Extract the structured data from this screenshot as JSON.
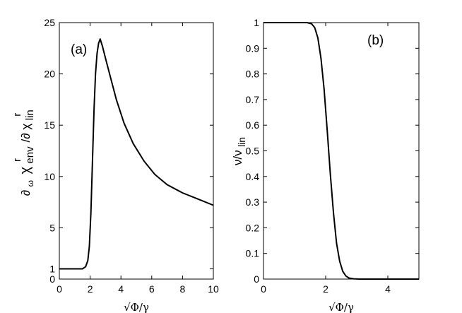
{
  "chart_data": [
    {
      "type": "line",
      "panel_label": "(a)",
      "xlabel": "√Φ/γ",
      "ylabel_parts": [
        "∂",
        "ω",
        "χ",
        "env",
        "r",
        "/∂ χ",
        "lin",
        "r"
      ],
      "xlim": [
        0,
        10
      ],
      "ylim": [
        0,
        25
      ],
      "xticks": [
        0,
        2,
        4,
        6,
        8,
        10
      ],
      "yticks": [
        0,
        1,
        5,
        10,
        15,
        20,
        25
      ],
      "grid": false,
      "series": [
        {
          "x": [
            0,
            1.5,
            1.7,
            1.85,
            1.95,
            2.05,
            2.15,
            2.25,
            2.35,
            2.45,
            2.55,
            2.65,
            2.8,
            3.0,
            3.3,
            3.7,
            4.2,
            4.8,
            5.5,
            6.2,
            7.0,
            8.0,
            9.0,
            10.0
          ],
          "y": [
            1.0,
            1.0,
            1.2,
            1.8,
            3.2,
            6.5,
            11.5,
            16.5,
            20.0,
            22.0,
            23.0,
            23.4,
            22.7,
            21.5,
            19.8,
            17.5,
            15.2,
            13.2,
            11.5,
            10.2,
            9.2,
            8.4,
            7.8,
            7.2
          ]
        }
      ]
    },
    {
      "type": "line",
      "panel_label": "(b)",
      "xlabel": "√Φ/γ",
      "ylabel_parts": [
        "ν/ν",
        "lin"
      ],
      "xlim": [
        0,
        5
      ],
      "ylim": [
        0,
        1
      ],
      "xticks": [
        0,
        2,
        4
      ],
      "yticks": [
        0,
        0.1,
        0.2,
        0.3,
        0.4,
        0.5,
        0.6,
        0.7,
        0.8,
        0.9,
        1
      ],
      "grid": false,
      "series": [
        {
          "x": [
            0,
            1.4,
            1.55,
            1.65,
            1.75,
            1.85,
            1.95,
            2.05,
            2.15,
            2.25,
            2.35,
            2.45,
            2.55,
            2.65,
            2.75,
            2.9,
            3.1,
            5.0
          ],
          "y": [
            1.0,
            1.0,
            0.995,
            0.98,
            0.94,
            0.86,
            0.74,
            0.58,
            0.41,
            0.26,
            0.14,
            0.07,
            0.03,
            0.012,
            0.004,
            0.001,
            0.0,
            0.0
          ]
        }
      ]
    }
  ]
}
